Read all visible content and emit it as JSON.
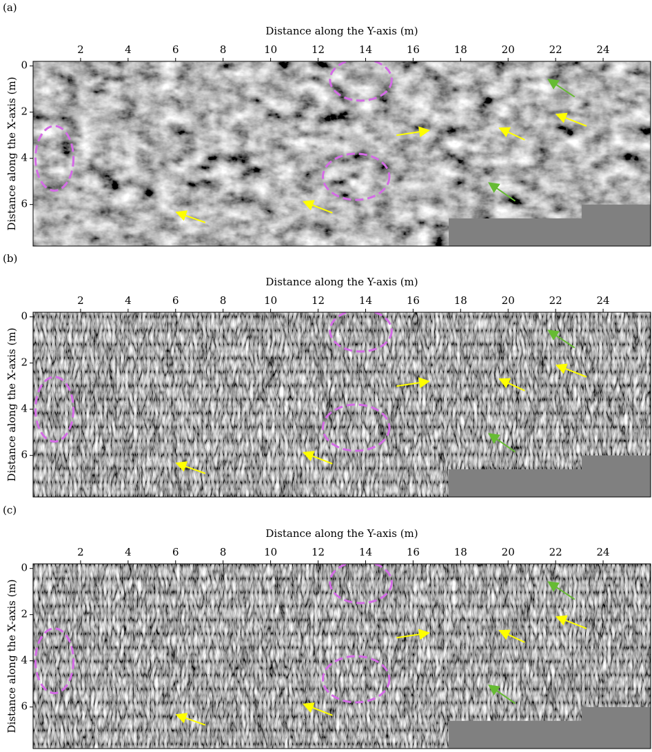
{
  "chart_data": [
    {
      "type": "image",
      "label": "(a)",
      "xlabel": "Distance along the Y-axis (m)",
      "ylabel": "Distance along the X-axis (m)",
      "xlim": [
        0,
        26
      ],
      "ylim": [
        -0.2,
        7.8
      ],
      "xticks": [
        2,
        4,
        6,
        8,
        10,
        12,
        14,
        16,
        18,
        20,
        22,
        24
      ],
      "yticks": [
        0,
        2,
        4,
        6
      ],
      "texture": "coarse"
    },
    {
      "type": "image",
      "label": "(b)",
      "xlabel": "Distance along the Y-axis (m)",
      "ylabel": "Distance along the X-axis (m)",
      "xlim": [
        0,
        26
      ],
      "ylim": [
        -0.2,
        7.8
      ],
      "xticks": [
        2,
        4,
        6,
        8,
        10,
        12,
        14,
        16,
        18,
        20,
        22,
        24
      ],
      "yticks": [
        0,
        2,
        4,
        6
      ],
      "texture": "fine"
    },
    {
      "type": "image",
      "label": "(c)",
      "xlabel": "Distance along the Y-axis (m)",
      "ylabel": "Distance along the X-axis (m)",
      "xlim": [
        0,
        26
      ],
      "ylim": [
        -0.2,
        7.8
      ],
      "xticks": [
        2,
        4,
        6,
        8,
        10,
        12,
        14,
        16,
        18,
        20,
        22,
        24
      ],
      "yticks": [
        0,
        2,
        4,
        6
      ],
      "texture": "fine"
    }
  ]
}
